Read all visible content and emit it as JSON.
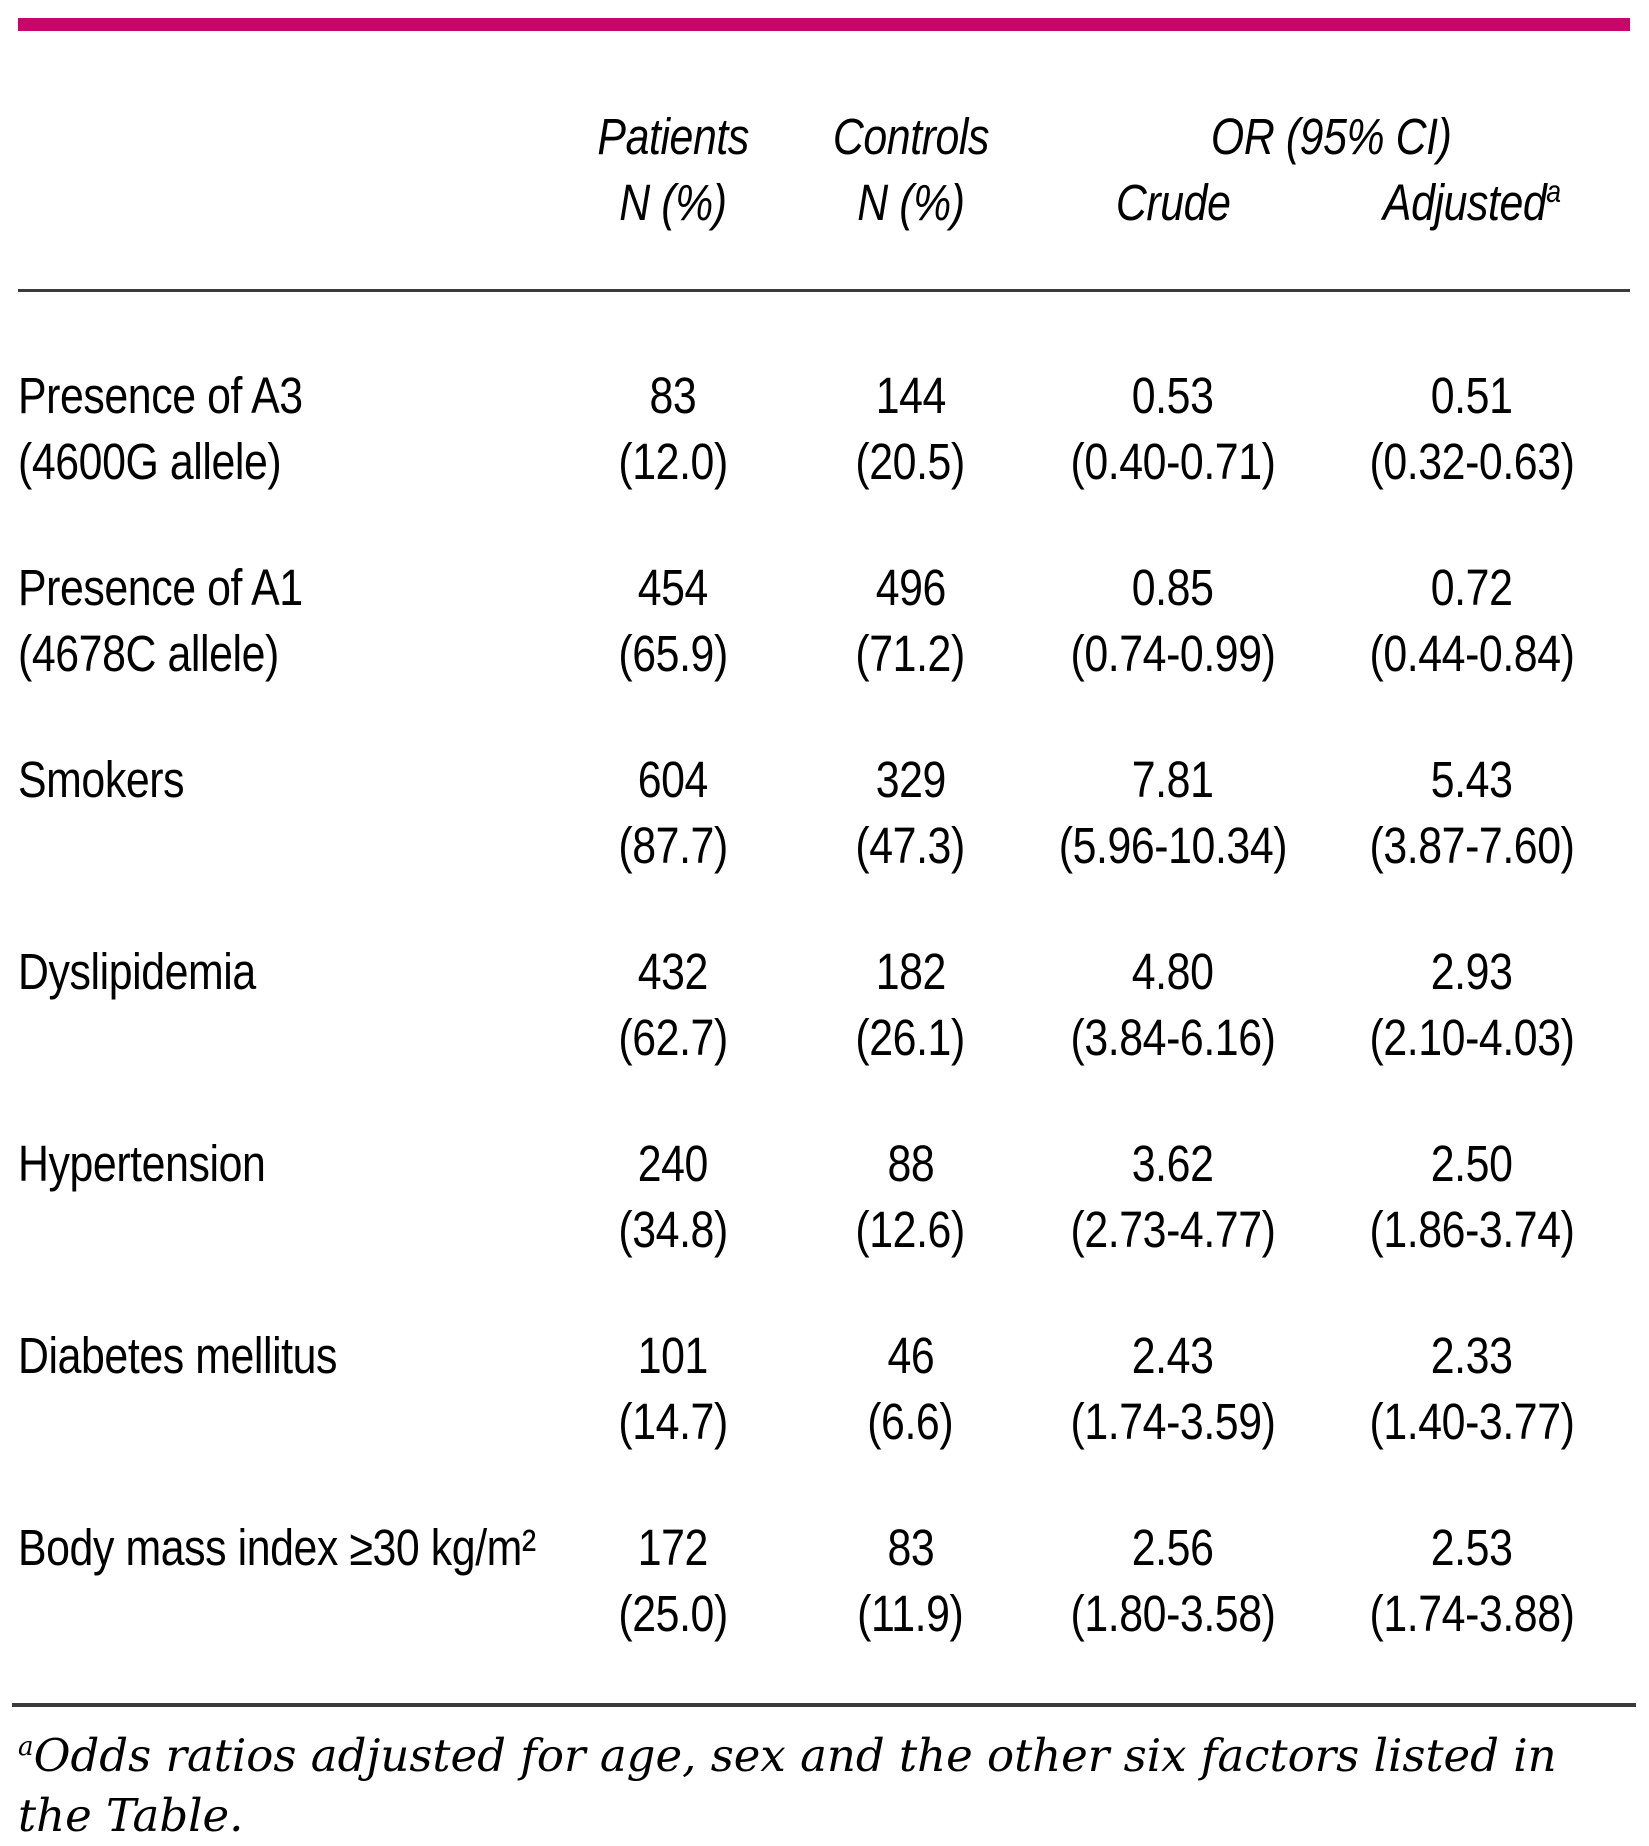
{
  "colors": {
    "accent": "#C7056B",
    "rule": "#3B3B3B",
    "ink": "#000000",
    "paper": "#FFFFFF"
  },
  "header": {
    "patients": "Patients",
    "patients_sub": "N (%)",
    "controls": "Controls",
    "controls_sub": "N (%)",
    "or_group": "OR (95% CI)",
    "crude": "Crude",
    "adjusted": "Adjusted",
    "adjusted_marker": "a"
  },
  "table": {
    "rows": [
      {
        "label_line1": "Presence of A3",
        "label_line2": "(4600G allele)",
        "patients_n": "83",
        "patients_pct": "(12.0)",
        "controls_n": "144",
        "controls_pct": "(20.5)",
        "crude_or": "0.53",
        "crude_ci": "(0.40-0.71)",
        "adjusted_or": "0.51",
        "adjusted_ci": "(0.32-0.63)"
      },
      {
        "label_line1": "Presence of A1",
        "label_line2": "(4678C allele)",
        "patients_n": "454",
        "patients_pct": "(65.9)",
        "controls_n": "496",
        "controls_pct": "(71.2)",
        "crude_or": "0.85",
        "crude_ci": "(0.74-0.99)",
        "adjusted_or": "0.72",
        "adjusted_ci": "(0.44-0.84)"
      },
      {
        "label_line1": "Smokers",
        "label_line2": "",
        "patients_n": "604",
        "patients_pct": "(87.7)",
        "controls_n": "329",
        "controls_pct": "(47.3)",
        "crude_or": "7.81",
        "crude_ci": "(5.96-10.34)",
        "adjusted_or": "5.43",
        "adjusted_ci": "(3.87-7.60)"
      },
      {
        "label_line1": "Dyslipidemia",
        "label_line2": "",
        "patients_n": "432",
        "patients_pct": "(62.7)",
        "controls_n": "182",
        "controls_pct": "(26.1)",
        "crude_or": "4.80",
        "crude_ci": "(3.84-6.16)",
        "adjusted_or": "2.93",
        "adjusted_ci": "(2.10-4.03)"
      },
      {
        "label_line1": "Hypertension",
        "label_line2": "",
        "patients_n": "240",
        "patients_pct": "(34.8)",
        "controls_n": "88",
        "controls_pct": "(12.6)",
        "crude_or": "3.62",
        "crude_ci": "(2.73-4.77)",
        "adjusted_or": "2.50",
        "adjusted_ci": "(1.86-3.74)"
      },
      {
        "label_line1": "Diabetes mellitus",
        "label_line2": "",
        "patients_n": "101",
        "patients_pct": "(14.7)",
        "controls_n": "46",
        "controls_pct": "(6.6)",
        "crude_or": "2.43",
        "crude_ci": "(1.74-3.59)",
        "adjusted_or": "2.33",
        "adjusted_ci": "(1.40-3.77)"
      },
      {
        "label_line1": "Body mass index ≥30 kg/m²",
        "label_line2": "",
        "patients_n": "172",
        "patients_pct": "(25.0)",
        "controls_n": "83",
        "controls_pct": "(11.9)",
        "crude_or": "2.56",
        "crude_ci": "(1.80-3.58)",
        "adjusted_or": "2.53",
        "adjusted_ci": "(1.74-3.88)"
      }
    ]
  },
  "footnote": {
    "marker": "a",
    "text": "Odds ratios adjusted for age, sex and the other six factors listed in the Table."
  }
}
